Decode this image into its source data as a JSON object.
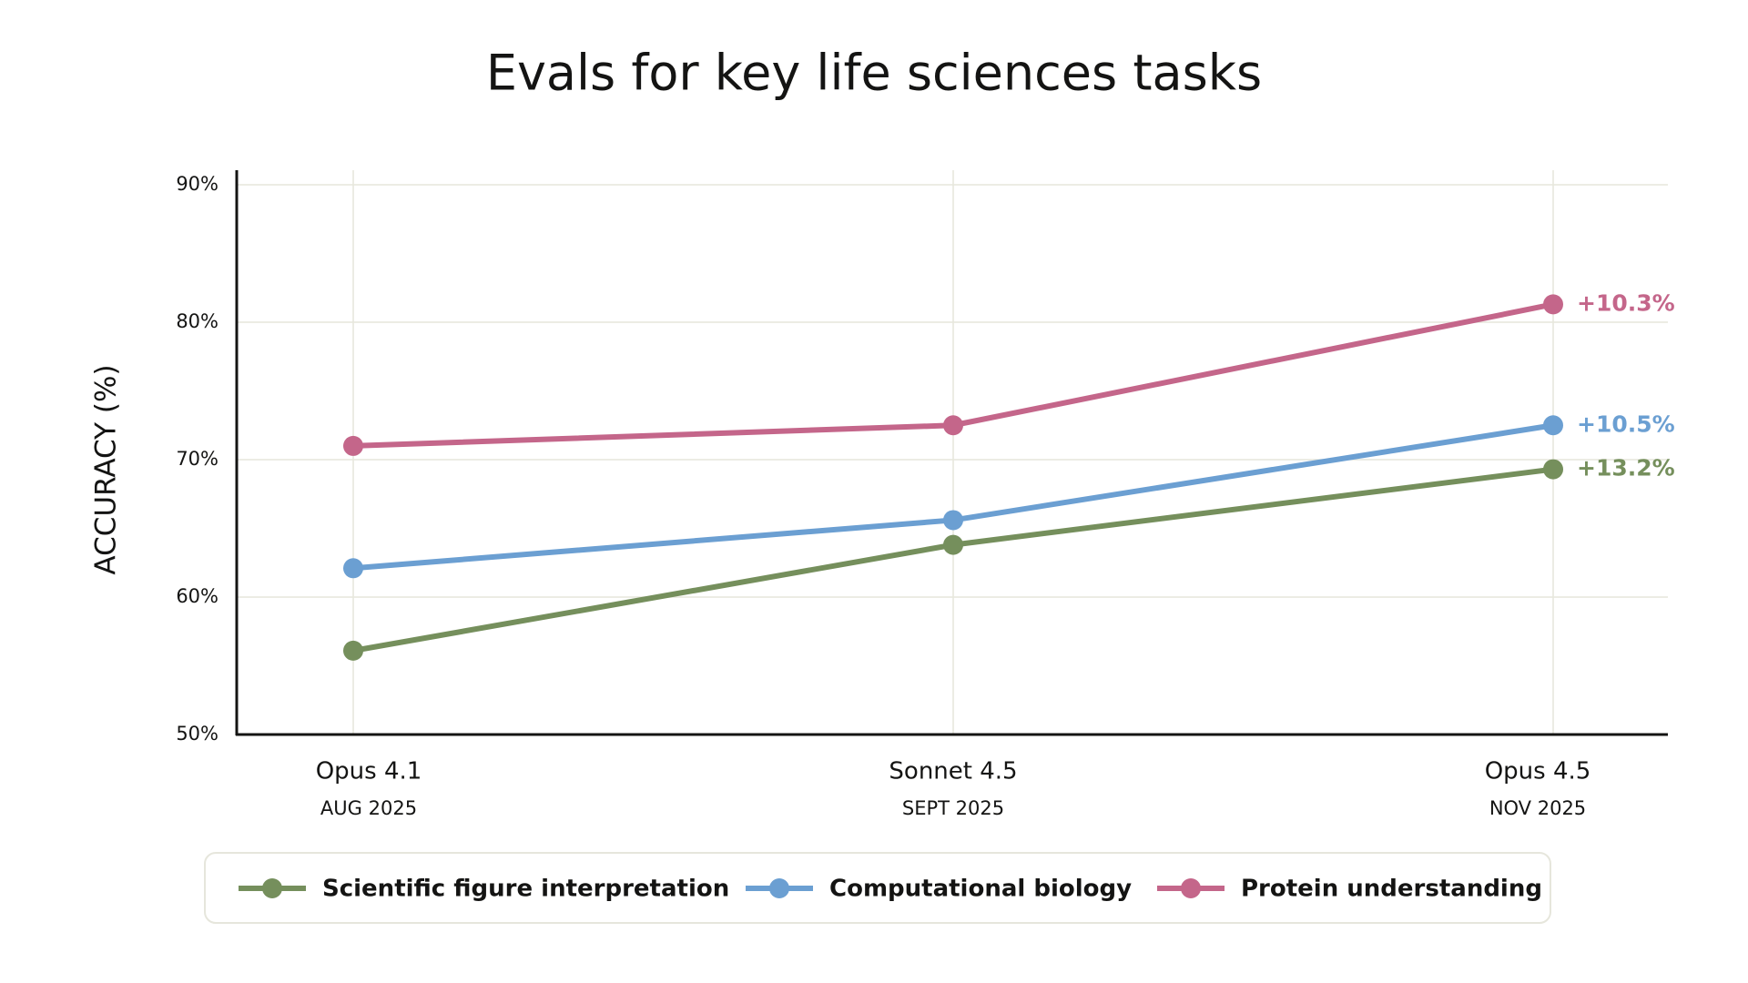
{
  "chart_data": {
    "type": "line",
    "title": "Evals for key life sciences tasks",
    "y_label": "ACCURACY (%)",
    "categories": [
      "Opus 4.1",
      "Sonnet 4.5",
      "Opus 4.5"
    ],
    "category_dates": [
      "AUG 2025",
      "SEPT 2025",
      "NOV 2025"
    ],
    "series": [
      {
        "name": "Scientific figure interpretation",
        "color": "#758f5c",
        "values": [
          56.1,
          63.8,
          69.3
        ],
        "end_label": "+13.2%"
      },
      {
        "name": "Computational biology",
        "color": "#6b9fd2",
        "values": [
          62.1,
          65.6,
          72.5
        ],
        "end_label": "+10.5%"
      },
      {
        "name": "Protein understanding",
        "color": "#c4668a",
        "values": [
          71.0,
          72.5,
          81.3
        ],
        "end_label": "+10.3%"
      }
    ],
    "ylim": [
      50,
      90
    ],
    "yticks": [
      {
        "value": 50,
        "label": "50%"
      },
      {
        "value": 60,
        "label": "60%"
      },
      {
        "value": 70,
        "label": "70%"
      },
      {
        "value": 80,
        "label": "80%"
      },
      {
        "value": 90,
        "label": "90%"
      }
    ],
    "grid": true
  }
}
